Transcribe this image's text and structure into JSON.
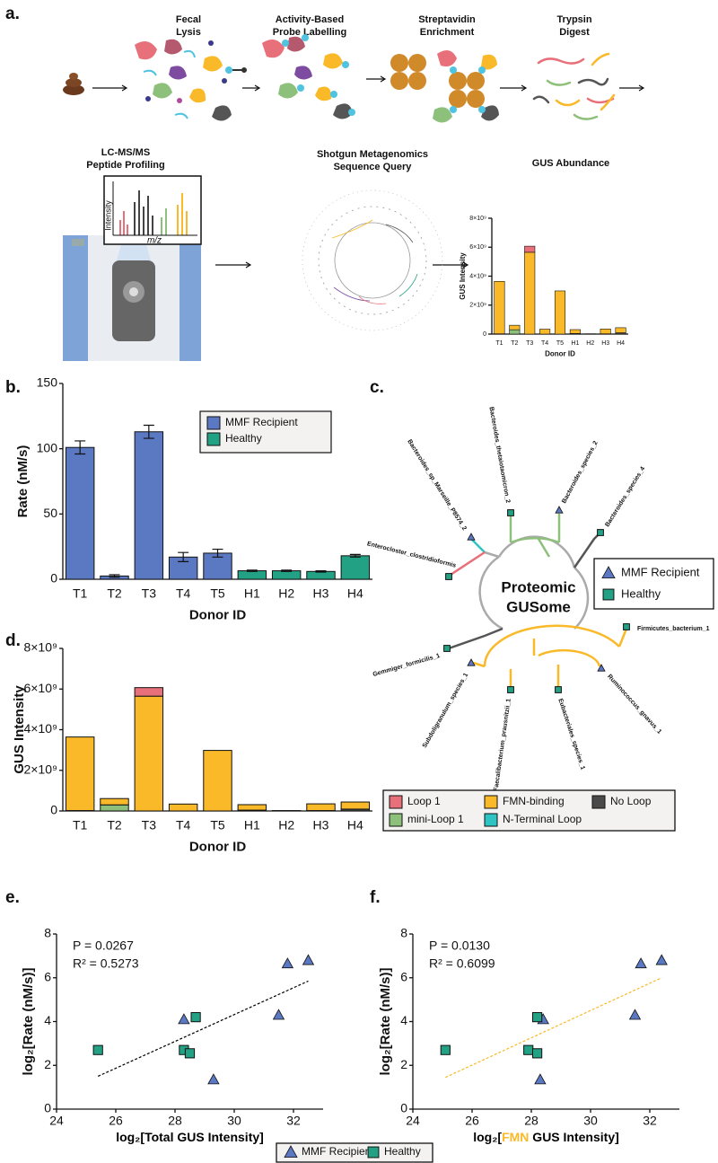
{
  "panel_labels": [
    "a.",
    "b.",
    "c.",
    "d.",
    "e.",
    "f."
  ],
  "workflow": {
    "steps": [
      [
        "Fecal",
        "Lysis"
      ],
      [
        "Activity-Based",
        "Probe Labelling"
      ],
      [
        "Streptavidin",
        "Enrichment"
      ],
      [
        "Trypsin",
        "Digest"
      ]
    ],
    "stages": [
      [
        "LC-MS/MS",
        "Peptide Profiling"
      ],
      [
        "Shotgun Metagenomics",
        "Sequence Query"
      ],
      [
        "GUS Abundance"
      ]
    ],
    "spectrum": {
      "y_label": "Intensity",
      "x_label": "m/z"
    }
  },
  "tree": {
    "center_label": [
      "Proteomic",
      "GUSome"
    ],
    "leaves": [
      "Bacteroides_thetaiotaomicron_2",
      "Bacteroides_species_2",
      "Bacteroides_species_4",
      "Bacteroides_sp_Marseille_P8574_2",
      "Enterocloster_clostridioformis",
      "Gemmiger_formicilis_1",
      "Firmicutes_bacterium_1",
      "Ruminococcus_gnavus_1",
      "Eubacteriales_species_1",
      "Faecalibacterium_prausnitzii_1",
      "Subdoligranulum_species_1"
    ]
  },
  "chart_data": [
    {
      "type": "bar",
      "categories": [
        "T1",
        "T2",
        "T3",
        "T4",
        "T5",
        "H1",
        "H2",
        "H3",
        "H4"
      ],
      "x_label": "Donor ID",
      "y_label": "Rate (nM/s)",
      "ylim": [
        0,
        150
      ],
      "yticks": [
        0,
        50,
        100,
        150
      ],
      "series": [
        {
          "name": "MMF Recipient",
          "color": "#5b78c2",
          "values": [
            101,
            2.5,
            113,
            17,
            20,
            null,
            null,
            null,
            null
          ],
          "errors": [
            5,
            1,
            5,
            3.5,
            3,
            null,
            null,
            null,
            null
          ]
        },
        {
          "name": "Healthy",
          "color": "#22a184",
          "values": [
            null,
            null,
            null,
            null,
            null,
            6.5,
            6.5,
            6,
            18
          ],
          "errors": [
            null,
            null,
            null,
            null,
            null,
            0.5,
            0.5,
            0.5,
            1
          ]
        }
      ]
    },
    {
      "type": "stacked_bar",
      "categories": [
        "T1",
        "T2",
        "T3",
        "T4",
        "T5",
        "H1",
        "H2",
        "H3",
        "H4"
      ],
      "x_label": "Donor ID",
      "y_label": "GUS Intensity",
      "ylim": [
        0,
        8000000000
      ],
      "yticks": [
        0,
        {
          "value": 2000000000,
          "label": "2×10⁹"
        },
        {
          "value": 4000000000,
          "label": "4×10⁹"
        },
        {
          "value": 6000000000,
          "label": "6×10⁹"
        },
        {
          "value": 8000000000,
          "label": "8×10⁹"
        }
      ],
      "series": [
        {
          "name": "No Loop",
          "color": "#4a4a4a",
          "values": [
            20000000,
            0,
            0,
            0,
            0,
            40000000,
            20000000,
            20000000,
            90000000
          ]
        },
        {
          "name": "N-Terminal Loop",
          "color": "#2ec4c4",
          "values": [
            0,
            0,
            0,
            0,
            0,
            0,
            0,
            0,
            0
          ]
        },
        {
          "name": "mini-Loop 1",
          "color": "#8dc07a",
          "values": [
            0,
            300000000,
            0,
            0,
            0,
            0,
            0,
            0,
            0
          ]
        },
        {
          "name": "FMN-binding",
          "color": "#f9b928",
          "values": [
            3620000000,
            310000000,
            5650000000,
            340000000,
            2980000000,
            270000000,
            0,
            330000000,
            350000000
          ]
        },
        {
          "name": "Loop 1",
          "color": "#e8707a",
          "values": [
            0,
            0,
            420000000,
            0,
            0,
            0,
            0,
            0,
            0
          ]
        }
      ]
    },
    {
      "type": "scatter",
      "x_label": [
        "log₂[Total GUS Intensity]"
      ],
      "x_label_colors": [
        "#000000"
      ],
      "y_label": "log₂[Rate (nM/s)]",
      "annotations": [
        "P = 0.0267",
        "R² = 0.5273"
      ],
      "xlim": [
        24,
        33
      ],
      "xticks": [
        24,
        26,
        28,
        30,
        32
      ],
      "ylim": [
        0,
        8
      ],
      "yticks": [
        0,
        2,
        4,
        6,
        8
      ],
      "series": [
        {
          "name": "MMF Recipient",
          "color": "#5b78c2",
          "marker": "triangle",
          "x": [
            28.3,
            29.3,
            31.5,
            31.8,
            32.5
          ],
          "y": [
            4.1,
            1.35,
            4.3,
            6.65,
            6.8
          ]
        },
        {
          "name": "Healthy",
          "color": "#22a184",
          "marker": "square",
          "x": [
            25.4,
            28.3,
            28.5,
            28.7
          ],
          "y": [
            2.7,
            2.7,
            2.55,
            4.2
          ]
        }
      ],
      "fit": {
        "color": "#000000",
        "x": [
          25.4,
          32.5
        ],
        "y": [
          1.5,
          5.85
        ]
      }
    },
    {
      "type": "scatter",
      "x_label": [
        "log₂[",
        "FMN",
        " GUS Intensity]"
      ],
      "x_label_colors": [
        "#000000",
        "#f9b928",
        "#000000"
      ],
      "y_label": "log₂[Rate (nM/s)]",
      "annotations": [
        "P = 0.0130",
        "R² = 0.6099"
      ],
      "xlim": [
        24,
        33
      ],
      "xticks": [
        24,
        26,
        28,
        30,
        32
      ],
      "ylim": [
        0,
        8
      ],
      "yticks": [
        0,
        2,
        4,
        6,
        8
      ],
      "series": [
        {
          "name": "MMF Recipient",
          "color": "#5b78c2",
          "marker": "triangle",
          "x": [
            28.4,
            28.3,
            31.5,
            31.7,
            32.4
          ],
          "y": [
            4.1,
            1.35,
            4.3,
            6.65,
            6.8
          ]
        },
        {
          "name": "Healthy",
          "color": "#22a184",
          "marker": "square",
          "x": [
            25.1,
            27.9,
            28.2,
            28.2
          ],
          "y": [
            2.7,
            2.7,
            2.55,
            4.2
          ]
        }
      ],
      "fit": {
        "color": "#f9b928",
        "x": [
          25.1,
          32.4
        ],
        "y": [
          1.45,
          6.0
        ]
      }
    }
  ]
}
